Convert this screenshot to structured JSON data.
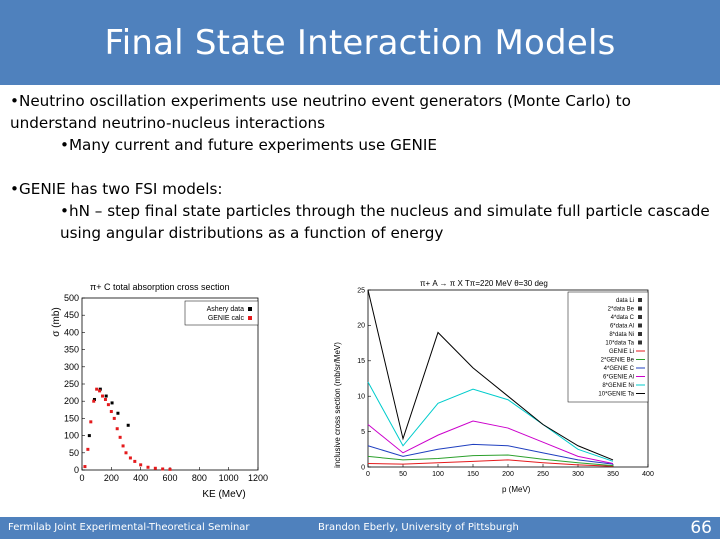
{
  "slide": {
    "title": "Final State Interaction Models",
    "bullets": [
      "•Neutrino oscillation experiments use neutrino event generators (Monte Carlo) to understand neutrino-nucleus interactions",
      "•Many current and future experiments use GENIE",
      "•GENIE has two FSI models:",
      "•hN – step final state particles through the nucleus and simulate full particle cascade using angular distributions as a function of energy"
    ],
    "footer_left": "Fermilab Joint Experimental-Theoretical Seminar",
    "footer_center": "Brandon Eberly, University of Pittsburgh",
    "page_number": "66"
  },
  "chart_data": [
    {
      "type": "scatter",
      "title": "π+ C total absorption cross section",
      "xlabel": "KE (MeV)",
      "ylabel": "σ (mb)",
      "xlim": [
        0,
        1200
      ],
      "ylim": [
        0,
        500
      ],
      "xticks": [
        "0",
        "200",
        "400",
        "600",
        "800",
        "1000",
        "1200"
      ],
      "yticks": [
        "0",
        "50",
        "100",
        "150",
        "200",
        "250",
        "300",
        "350",
        "400",
        "450",
        "500"
      ],
      "legend": [
        "Ashery data",
        "GENIE calc"
      ],
      "series": [
        {
          "name": "Ashery data",
          "color": "#000000",
          "x": [
            50,
            85,
            125,
            165,
            205,
            245,
            315
          ],
          "y": [
            100,
            205,
            235,
            215,
            195,
            165,
            130
          ]
        },
        {
          "name": "GENIE calc",
          "color": "#e41a1c",
          "x": [
            20,
            40,
            60,
            80,
            100,
            120,
            140,
            160,
            180,
            200,
            220,
            240,
            260,
            280,
            300,
            330,
            360,
            400,
            450,
            500,
            550,
            600
          ],
          "y": [
            10,
            60,
            140,
            200,
            235,
            230,
            215,
            205,
            190,
            170,
            150,
            120,
            95,
            70,
            50,
            35,
            25,
            15,
            8,
            5,
            3,
            2
          ]
        }
      ]
    },
    {
      "type": "line",
      "title": "π+ A → π X Tπ=220 MeV θ=30 deg",
      "xlabel": "p (MeV)",
      "ylabel": "inclusive cross section (mb/sr/MeV)",
      "xlim": [
        0,
        400
      ],
      "ylim": [
        0,
        25
      ],
      "xticks": [
        "0",
        "50",
        "100",
        "150",
        "200",
        "250",
        "300",
        "350",
        "400"
      ],
      "yticks": [
        "0",
        "5",
        "10",
        "15",
        "20",
        "25"
      ],
      "legend": [
        "data Li",
        "2*data Be",
        "4*data C",
        "6*data Al",
        "8*data Ni",
        "10*data Ta",
        "GENIE Li",
        "2*GENIE Be",
        "4*GENIE C",
        "6*GENIE Al",
        "8*GENIE Ni",
        "10*GENIE Ta"
      ],
      "series": [
        {
          "name": "GENIE Li",
          "color": "#e41a1c",
          "x": [
            0,
            50,
            100,
            150,
            200,
            250,
            300,
            350
          ],
          "y": [
            0.5,
            0.4,
            0.6,
            0.8,
            1.0,
            0.6,
            0.3,
            0.1
          ]
        },
        {
          "name": "2*GENIE Be",
          "color": "#2ca02c",
          "x": [
            0,
            50,
            100,
            150,
            200,
            250,
            300,
            350
          ],
          "y": [
            1.5,
            1.0,
            1.2,
            1.6,
            1.7,
            1.1,
            0.6,
            0.2
          ]
        },
        {
          "name": "4*GENIE C",
          "color": "#1f3fbf",
          "x": [
            0,
            50,
            100,
            150,
            200,
            250,
            300,
            350
          ],
          "y": [
            3.0,
            1.5,
            2.5,
            3.2,
            3.0,
            2.0,
            1.0,
            0.4
          ]
        },
        {
          "name": "6*GENIE Al",
          "color": "#cc00cc",
          "x": [
            0,
            50,
            100,
            150,
            200,
            250,
            300,
            350
          ],
          "y": [
            6.0,
            2.0,
            4.5,
            6.5,
            5.5,
            3.5,
            1.5,
            0.5
          ]
        },
        {
          "name": "8*GENIE Ni",
          "color": "#00cccc",
          "x": [
            0,
            50,
            100,
            150,
            200,
            250,
            300,
            350
          ],
          "y": [
            12.0,
            3.0,
            9.0,
            11.0,
            9.5,
            6.0,
            2.5,
            0.8
          ]
        },
        {
          "name": "10*GENIE Ta",
          "color": "#000000",
          "x": [
            0,
            50,
            100,
            150,
            200,
            250,
            300,
            350
          ],
          "y": [
            25.0,
            4.0,
            19.0,
            14.0,
            10.0,
            6.0,
            3.0,
            1.0
          ]
        }
      ]
    }
  ]
}
